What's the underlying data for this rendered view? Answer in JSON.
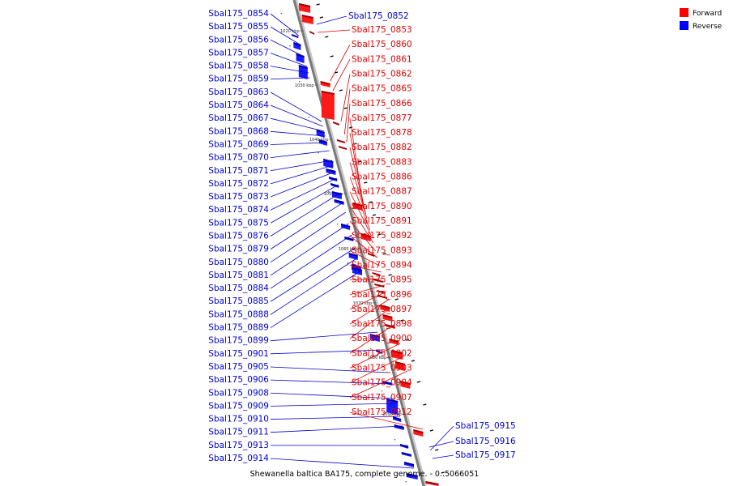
{
  "legend": {
    "forward_label": "Forward",
    "reverse_label": "Reverse",
    "forward_color": "#ff0000",
    "reverse_color": "#0000ff"
  },
  "caption": "Shewanella baltica BA175, complete genome. - 0..5066051",
  "scale_labels": [
    "1020 kbp",
    "1030 kbp",
    "1040 kbp",
    "1050 kbp",
    "1060 kbp",
    "1070 kbp",
    "1080 kbp",
    "1090 kbp"
  ],
  "reverse_genes": [
    "Sbal175_0854",
    "Sbal175_0855",
    "Sbal175_0856",
    "Sbal175_0857",
    "Sbal175_0858",
    "Sbal175_0859",
    "Sbal175_0863",
    "Sbal175_0864",
    "Sbal175_0867",
    "Sbal175_0868",
    "Sbal175_0869",
    "Sbal175_0870",
    "Sbal175_0871",
    "Sbal175_0872",
    "Sbal175_0873",
    "Sbal175_0874",
    "Sbal175_0875",
    "Sbal175_0876",
    "Sbal175_0879",
    "Sbal175_0880",
    "Sbal175_0881",
    "Sbal175_0884",
    "Sbal175_0885",
    "Sbal175_0888",
    "Sbal175_0889",
    "Sbal175_0899",
    "Sbal175_0901",
    "Sbal175_0905",
    "Sbal175_0906",
    "Sbal175_0908",
    "Sbal175_0909",
    "Sbal175_0910",
    "Sbal175_0911",
    "Sbal175_0913",
    "Sbal175_0914"
  ],
  "forward_genes": [
    "Sbal175_0853",
    "Sbal175_0860",
    "Sbal175_0861",
    "Sbal175_0862",
    "Sbal175_0865",
    "Sbal175_0866",
    "Sbal175_0877",
    "Sbal175_0878",
    "Sbal175_0882",
    "Sbal175_0883",
    "Sbal175_0886",
    "Sbal175_0887",
    "Sbal175_0890",
    "Sbal175_0891",
    "Sbal175_0892",
    "Sbal175_0893",
    "Sbal175_0894",
    "Sbal175_0895",
    "Sbal175_0896",
    "Sbal175_0897",
    "Sbal175_0898",
    "Sbal175_0900",
    "Sbal175_0902",
    "Sbal175_0903",
    "Sbal175_0904",
    "Sbal175_0907",
    "Sbal175_0912"
  ],
  "right_blue_genes": [
    "Sbal175_0852",
    "Sbal175_0915",
    "Sbal175_0916",
    "Sbal175_0917"
  ]
}
